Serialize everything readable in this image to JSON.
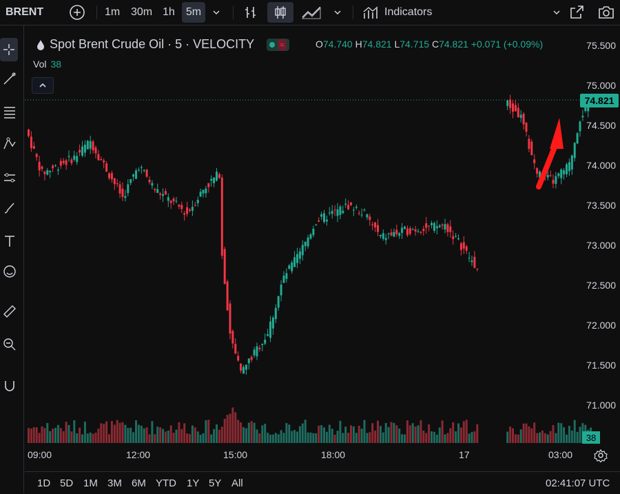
{
  "toolbar": {
    "symbol": "BRENT",
    "intervals": [
      "1m",
      "30m",
      "1h",
      "5m"
    ],
    "active_interval": "5m",
    "indicators_label": "Indicators"
  },
  "legend": {
    "title": "Spot Brent Crude Oil · 5 · VELOCITY",
    "o_label": "O",
    "o": "74.740",
    "h_label": "H",
    "h": "74.821",
    "l_label": "L",
    "l": "74.715",
    "c_label": "C",
    "c": "74.821",
    "change": "+0.071 (+0.09%)",
    "vol_label": "Vol",
    "vol": "38"
  },
  "yaxis": {
    "ticks": [
      "75.500",
      "75.000",
      "74.500",
      "74.000",
      "73.500",
      "73.000",
      "72.500",
      "72.000",
      "71.500",
      "71.000"
    ],
    "last_price": "74.821",
    "last_volume": "38"
  },
  "xaxis": {
    "ticks": [
      "09:00",
      "12:00",
      "15:00",
      "18:00",
      "17",
      "03:00"
    ]
  },
  "ranges": [
    "1D",
    "5D",
    "1M",
    "3M",
    "6M",
    "YTD",
    "1Y",
    "5Y",
    "All"
  ],
  "clock": "02:41:07 UTC",
  "colors": {
    "up": "#22ab94",
    "down": "#f23645",
    "annotation": "#ff1a1a"
  },
  "chart_data": {
    "type": "candlestick",
    "series": [
      {
        "time": "08:00",
        "close": 74.45
      },
      {
        "time": "08:30",
        "close": 73.9
      },
      {
        "time": "09:30",
        "close": 74.1
      },
      {
        "time": "10:00",
        "close": 74.3
      },
      {
        "time": "11:00",
        "close": 73.6
      },
      {
        "time": "11:30",
        "close": 74.0
      },
      {
        "time": "12:00",
        "close": 73.7
      },
      {
        "time": "13:00",
        "close": 73.4
      },
      {
        "time": "13:30",
        "close": 73.7
      },
      {
        "time": "14:00",
        "close": 73.9
      },
      {
        "time": "14:05",
        "close": 72.9
      },
      {
        "time": "14:20",
        "close": 71.9
      },
      {
        "time": "14:40",
        "close": 71.4
      },
      {
        "time": "15:00",
        "close": 71.6
      },
      {
        "time": "15:30",
        "close": 71.9
      },
      {
        "time": "16:00",
        "close": 72.6
      },
      {
        "time": "16:30",
        "close": 72.9
      },
      {
        "time": "17:00",
        "close": 73.3
      },
      {
        "time": "17:30",
        "close": 73.4
      },
      {
        "time": "18:00",
        "close": 73.5
      },
      {
        "time": "18:30",
        "close": 73.4
      },
      {
        "time": "19:00",
        "close": 73.1
      },
      {
        "time": "20:00",
        "close": 73.2
      },
      {
        "time": "21:00",
        "close": 73.25
      },
      {
        "time": "21:30",
        "close": 73.0
      },
      {
        "time": "22:00",
        "close": 72.7
      },
      {
        "time": "00:00",
        "close": 74.8
      },
      {
        "time": "00:30",
        "close": 74.6
      },
      {
        "time": "01:00",
        "close": 73.9
      },
      {
        "time": "01:30",
        "close": 73.8
      },
      {
        "time": "02:00",
        "close": 74.0
      },
      {
        "time": "02:20",
        "close": 74.6
      },
      {
        "time": "02:40",
        "close": 74.821
      }
    ],
    "ylim": [
      70.9,
      75.6
    ]
  }
}
